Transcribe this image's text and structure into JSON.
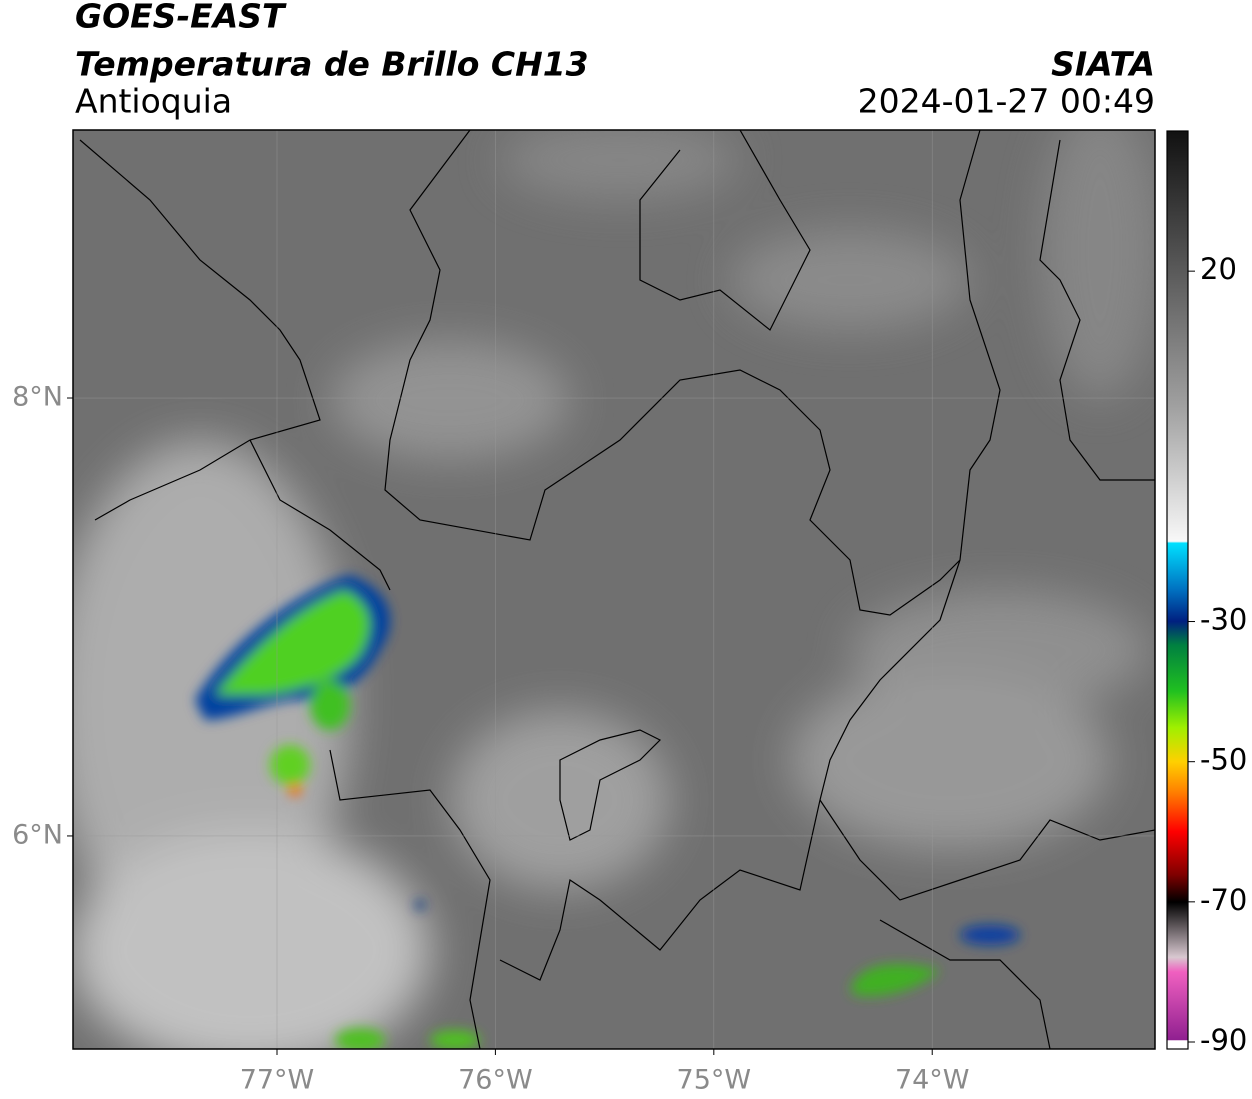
{
  "header": {
    "satellite": "GOES-EAST",
    "product": "Temperatura de Brillo CH13",
    "region": "Antioquia",
    "source": "SIATA",
    "datetime": "2024-01-27 00:49"
  },
  "map": {
    "xlim": [
      -77.934,
      -72.98
    ],
    "ylim": [
      5.027,
      9.224
    ],
    "xticks": [
      {
        "value": -77,
        "label": "77°W"
      },
      {
        "value": -76,
        "label": "76°W"
      },
      {
        "value": -75,
        "label": "75°W"
      },
      {
        "value": -74,
        "label": "74°W"
      }
    ],
    "yticks": [
      {
        "value": 8,
        "label": "8°N"
      },
      {
        "value": 6,
        "label": "6°N"
      }
    ],
    "grid": true
  },
  "colorbar": {
    "clim": [
      -91,
      40
    ],
    "ticks": [
      20,
      -30,
      -50,
      -70,
      -90
    ]
  }
}
